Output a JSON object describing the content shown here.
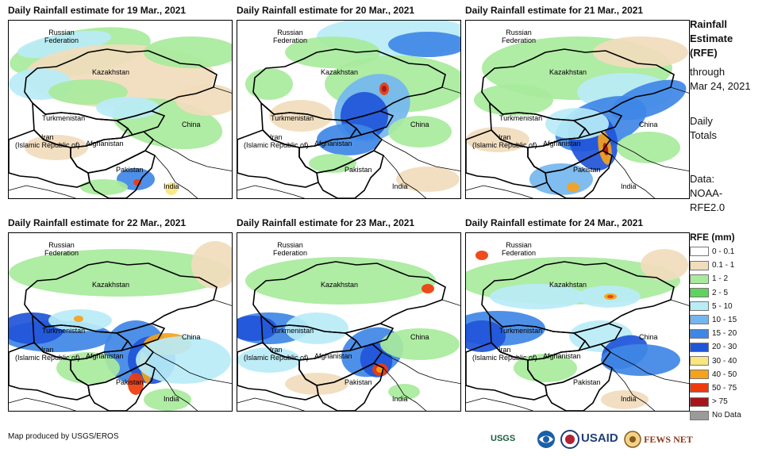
{
  "panels": [
    {
      "title": "Daily Rainfall estimate for 19 Mar., 2021"
    },
    {
      "title": "Daily Rainfall estimate for 20 Mar., 2021"
    },
    {
      "title": "Daily Rainfall estimate for 21 Mar., 2021"
    },
    {
      "title": "Daily Rainfall estimate for 22 Mar., 2021"
    },
    {
      "title": "Daily Rainfall estimate for 23 Mar., 2021"
    },
    {
      "title": "Daily Rainfall estimate for 24 Mar., 2021"
    }
  ],
  "map_labels": {
    "russia_1": "Russian",
    "russia_2": "Federation",
    "kazakhstan": "Kazakhstan",
    "turkmenistan": "Turkmenistan",
    "iran_1": "Iran",
    "iran_2": "(Islamic Republic of)",
    "afghanistan": "Afghanistan",
    "pakistan": "Pakistan",
    "china": "China",
    "india": "India"
  },
  "side_info": {
    "title_line1": "Rainfall",
    "title_line2": "Estimate",
    "title_line3": "(RFE)",
    "through": "through",
    "date": "Mar 24, 2021",
    "totals_1": "Daily",
    "totals_2": "Totals",
    "data_1": "Data:",
    "data_2": "NOAA-",
    "data_3": "RFE2.0"
  },
  "legend": {
    "title": "RFE (mm)",
    "items": [
      {
        "label": "0 - 0.1",
        "color": "#ffffff"
      },
      {
        "label": "0.1 - 1",
        "color": "#f1dcbc"
      },
      {
        "label": "1 - 2",
        "color": "#a8ea9c"
      },
      {
        "label": "2 - 5",
        "color": "#5fd45c"
      },
      {
        "label": "5 - 10",
        "color": "#b9ecf7"
      },
      {
        "label": "10 - 15",
        "color": "#74b6ef"
      },
      {
        "label": "15 - 20",
        "color": "#3f87e6"
      },
      {
        "label": "20 - 30",
        "color": "#1f55d8"
      },
      {
        "label": "30 - 40",
        "color": "#fbe57e"
      },
      {
        "label": "40 - 50",
        "color": "#f6a21a"
      },
      {
        "label": "50 - 75",
        "color": "#ef3b0c"
      },
      {
        "label": "> 75",
        "color": "#a8141b"
      },
      {
        "label": "No Data",
        "color": "#9a9a9a"
      }
    ]
  },
  "footer": {
    "credit": "Map produced by USGS/EROS"
  },
  "logos": {
    "usgs": "USGS",
    "usaid": "USAID",
    "fewsnet": "FEWS NET"
  }
}
